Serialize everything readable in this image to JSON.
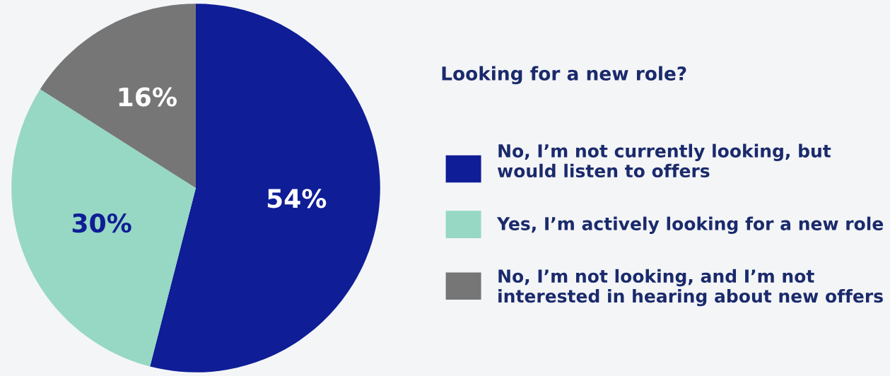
{
  "chart_data": {
    "type": "pie",
    "legend_title": "Looking for a new role?",
    "categories": [
      "No, I’m not currently looking, but would listen to offers",
      "Yes, I’m actively looking for a new role",
      "No, I’m not looking, and I’m not interested in hearing about new offers"
    ],
    "values": [
      54,
      30,
      16
    ],
    "colors": [
      "#0f1d96",
      "#96d8c3",
      "#767676"
    ],
    "value_labels": [
      "54%",
      "30%",
      "16%"
    ],
    "legend": "right"
  }
}
